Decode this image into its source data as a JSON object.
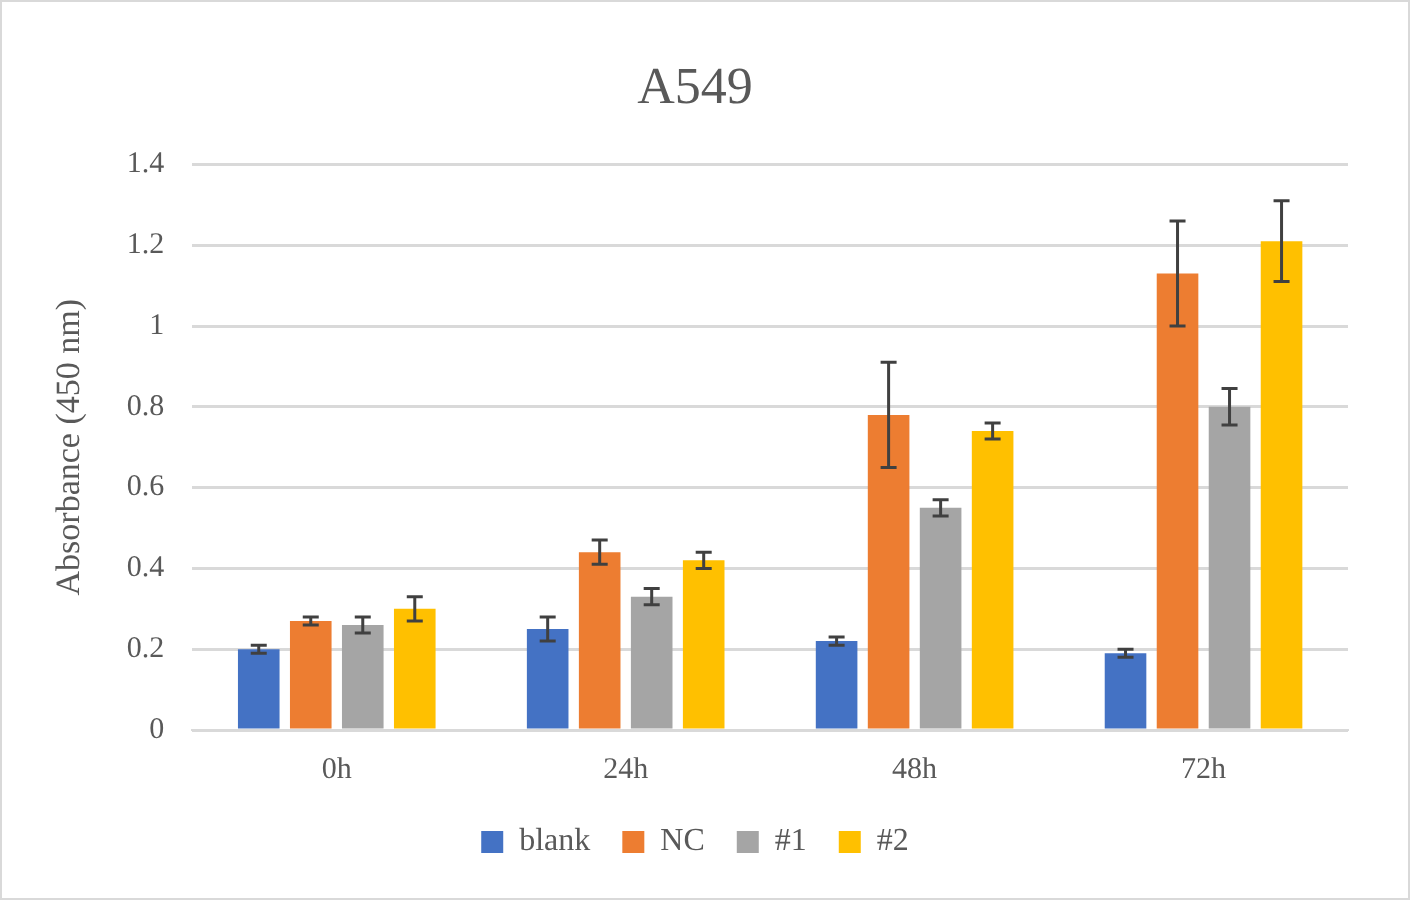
{
  "chart_data": {
    "type": "bar",
    "title": "A549",
    "ylabel": "Absorbance (450 nm)",
    "categories": [
      "0h",
      "24h",
      "48h",
      "72h"
    ],
    "series": [
      {
        "name": "blank",
        "color": "#4472c4",
        "values": [
          0.2,
          0.25,
          0.22,
          0.19
        ],
        "errors": [
          0.01,
          0.03,
          0.01,
          0.01
        ]
      },
      {
        "name": "NC",
        "color": "#ed7d31",
        "values": [
          0.27,
          0.44,
          0.78,
          1.13
        ],
        "errors": [
          0.01,
          0.03,
          0.13,
          0.13
        ]
      },
      {
        "name": "#1",
        "color": "#a5a5a5",
        "values": [
          0.26,
          0.33,
          0.55,
          0.8
        ],
        "errors": [
          0.02,
          0.02,
          0.02,
          0.045
        ]
      },
      {
        "name": "#2",
        "color": "#ffc000",
        "values": [
          0.3,
          0.42,
          0.74,
          1.21
        ],
        "errors": [
          0.03,
          0.02,
          0.02,
          0.1
        ]
      }
    ],
    "ylim": [
      0,
      1.4
    ],
    "yticks": [
      0,
      0.2,
      0.4,
      0.6,
      0.8,
      1,
      1.2,
      1.4
    ],
    "grid": "y",
    "legend": "bottom"
  }
}
